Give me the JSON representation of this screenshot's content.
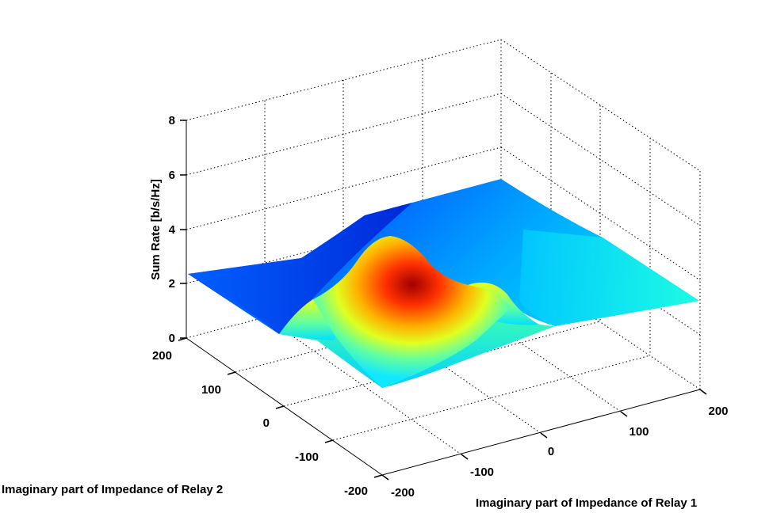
{
  "chart_data": {
    "type": "surface",
    "title": "",
    "xlabel": "Imaginary part of Impedance of Relay 1",
    "ylabel": "Imaginary part of Impedance of Relay 2",
    "zlabel": "Sum Rate [b/s/Hz]",
    "xlim": [
      -200,
      200
    ],
    "ylim": [
      -200,
      200
    ],
    "zlim": [
      0,
      8
    ],
    "xticks": [
      -200,
      -100,
      0,
      100,
      200
    ],
    "yticks": [
      -200,
      -100,
      0,
      100,
      200
    ],
    "zticks": [
      0,
      2,
      4,
      6,
      8
    ],
    "xtick_labels": [
      "-200",
      "-100",
      "0",
      "100",
      "200"
    ],
    "ytick_labels": [
      "-200",
      "-100",
      "0",
      "100",
      "200"
    ],
    "ztick_labels": [
      "0",
      "2",
      "4",
      "6",
      "8"
    ],
    "colormap": "jet",
    "grid": true,
    "x": [
      -200,
      -160,
      -120,
      -80,
      -40,
      0,
      40,
      80,
      120,
      160,
      200
    ],
    "y": [
      -200,
      -160,
      -120,
      -80,
      -40,
      0,
      40,
      80,
      120,
      160,
      200
    ],
    "z": [
      [
        2.8,
        3.0,
        3.3,
        3.5,
        3.6,
        3.7,
        3.8,
        3.6,
        3.3,
        3.0,
        2.8
      ],
      [
        2.9,
        3.0,
        3.3,
        3.4,
        3.6,
        3.7,
        3.7,
        3.5,
        3.2,
        3.0,
        2.9
      ],
      [
        3.1,
        3.2,
        3.4,
        3.5,
        3.9,
        4.0,
        3.9,
        3.5,
        3.2,
        3.0,
        3.0
      ],
      [
        3.2,
        3.4,
        3.7,
        4.0,
        4.2,
        4.1,
        4.2,
        3.7,
        3.1,
        3.0,
        3.1
      ],
      [
        3.0,
        2.8,
        4.2,
        4.6,
        5.2,
        5.5,
        5.1,
        4.2,
        2.5,
        2.3,
        2.7
      ],
      [
        2.0,
        1.0,
        4.5,
        5.3,
        5.9,
        6.3,
        5.8,
        4.6,
        0.8,
        1.6,
        2.4
      ],
      [
        1.9,
        0.4,
        4.0,
        5.2,
        6.2,
        7.0,
        6.1,
        4.3,
        0.3,
        1.4,
        2.3
      ],
      [
        2.0,
        0.5,
        3.6,
        4.8,
        6.0,
        6.7,
        5.9,
        4.1,
        0.4,
        1.5,
        2.4
      ],
      [
        2.1,
        1.2,
        3.1,
        4.2,
        5.0,
        5.2,
        4.9,
        3.6,
        1.3,
        1.9,
        2.5
      ],
      [
        2.2,
        2.0,
        2.8,
        3.5,
        3.9,
        4.0,
        3.8,
        3.1,
        2.2,
        2.3,
        2.6
      ],
      [
        2.4,
        2.3,
        2.6,
        2.9,
        3.1,
        3.2,
        3.1,
        2.8,
        2.5,
        2.5,
        2.7
      ]
    ]
  }
}
